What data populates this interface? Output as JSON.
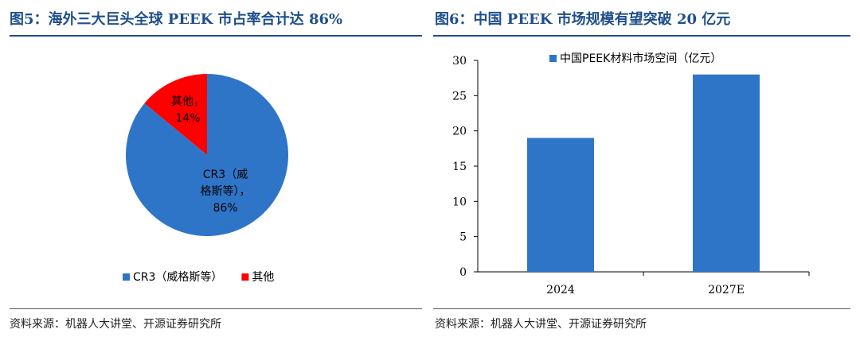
{
  "left": {
    "title": "图5：海外三大巨头全球 PEEK 市占率合计达 86%",
    "source": "资料来源：机器人大讲堂、开源证券研究所"
  },
  "right": {
    "title": "图6：中国 PEEK 市场规模有望突破 20 亿元",
    "source": "资料来源：机器人大讲堂、开源证券研究所"
  },
  "chart_data": [
    {
      "type": "pie",
      "title": "",
      "slices": [
        {
          "name": "CR3（威格斯等）",
          "value": 86,
          "color": "#2e75c8",
          "label_lines": [
            "CR3（威",
            "格斯等），",
            "86%"
          ]
        },
        {
          "name": "其他",
          "value": 14,
          "color": "#ff0000",
          "label_lines": [
            "其他，",
            "14%"
          ]
        }
      ],
      "legend": {
        "position": "bottom",
        "entries": [
          "CR3（威格斯等）",
          "其他"
        ]
      }
    },
    {
      "type": "bar",
      "title": "",
      "categories": [
        "2024",
        "2027E"
      ],
      "series": [
        {
          "name": "中国PEEK材料市场空间（亿元）",
          "values": [
            19,
            28
          ],
          "color": "#2e75c8"
        }
      ],
      "ylim": [
        0,
        30
      ],
      "yticks": [
        0,
        5,
        10,
        15,
        20,
        25,
        30
      ],
      "legend": {
        "position": "top-center"
      },
      "grid": false
    }
  ]
}
